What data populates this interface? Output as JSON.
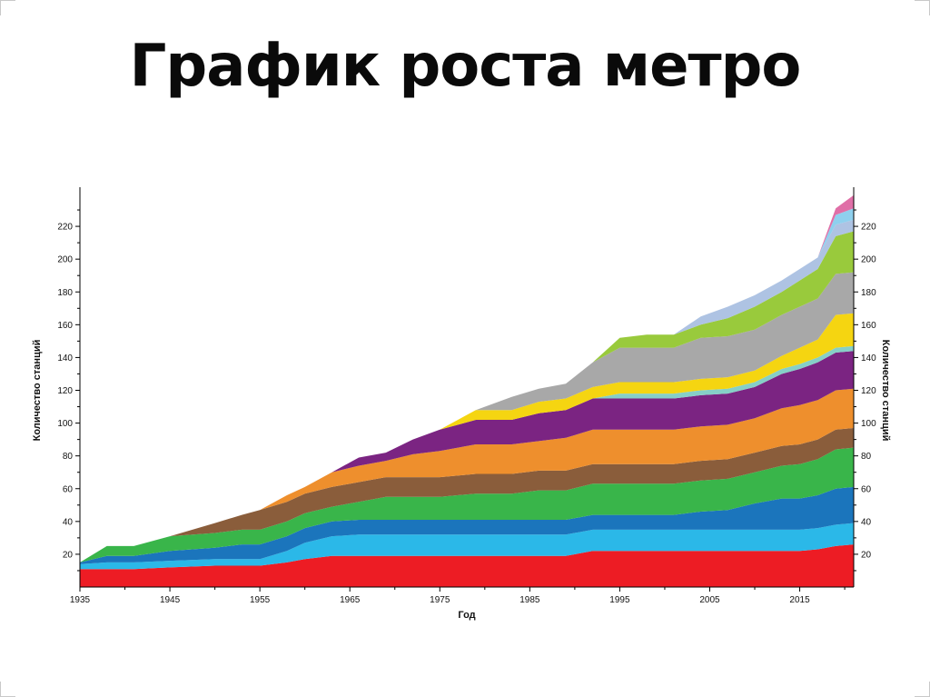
{
  "slide": {
    "title": "График роста метро"
  },
  "chart_data": {
    "type": "area",
    "stacked": true,
    "title": "",
    "xlabel": "Год",
    "ylabel_left": "Количество станций",
    "ylabel_right": "Количество станций",
    "xlim": [
      1935,
      2021
    ],
    "ylim": [
      0,
      240
    ],
    "x_ticks": [
      1935,
      1945,
      1955,
      1965,
      1975,
      1985,
      1995,
      2005,
      2015
    ],
    "y_ticks": [
      20,
      40,
      60,
      80,
      100,
      120,
      140,
      160,
      180,
      200,
      220
    ],
    "grid": false,
    "legend": "none",
    "x": [
      1935,
      1938,
      1941,
      1945,
      1950,
      1953,
      1955,
      1958,
      1960,
      1963,
      1966,
      1969,
      1972,
      1975,
      1979,
      1983,
      1986,
      1989,
      1992,
      1995,
      1998,
      2001,
      2004,
      2007,
      2010,
      2013,
      2015,
      2017,
      2019,
      2021
    ],
    "series": [
      {
        "name": "red",
        "color": "#ED1C24",
        "values": [
          11,
          11,
          11,
          12,
          13,
          13,
          13,
          15,
          17,
          19,
          19,
          19,
          19,
          19,
          19,
          19,
          19,
          19,
          22,
          22,
          22,
          22,
          22,
          22,
          22,
          22,
          22,
          23,
          25,
          26
        ]
      },
      {
        "name": "light-blue",
        "color": "#2BB8E8",
        "values": [
          3,
          4,
          4,
          4,
          4,
          4,
          4,
          7,
          10,
          12,
          13,
          13,
          13,
          13,
          13,
          13,
          13,
          13,
          13,
          13,
          13,
          13,
          13,
          13,
          13,
          13,
          13,
          13,
          13,
          13
        ]
      },
      {
        "name": "dark-blue",
        "color": "#1B75BC",
        "values": [
          1,
          4,
          4,
          6,
          7,
          9,
          9,
          9,
          9,
          9,
          9,
          9,
          9,
          9,
          9,
          9,
          9,
          9,
          9,
          9,
          9,
          9,
          11,
          12,
          16,
          19,
          19,
          20,
          22,
          22
        ]
      },
      {
        "name": "green",
        "color": "#39B54A",
        "values": [
          0,
          6,
          6,
          9,
          9,
          9,
          9,
          9,
          9,
          9,
          11,
          14,
          14,
          14,
          16,
          16,
          18,
          18,
          19,
          19,
          19,
          19,
          19,
          19,
          19,
          20,
          21,
          22,
          24,
          24
        ]
      },
      {
        "name": "brown",
        "color": "#8A5D3B",
        "values": [
          0,
          0,
          0,
          0,
          6,
          9,
          12,
          12,
          12,
          12,
          12,
          12,
          12,
          12,
          12,
          12,
          12,
          12,
          12,
          12,
          12,
          12,
          12,
          12,
          12,
          12,
          12,
          12,
          12,
          12
        ]
      },
      {
        "name": "orange",
        "color": "#EE8F2D",
        "values": [
          0,
          0,
          0,
          0,
          0,
          0,
          0,
          4,
          4,
          9,
          10,
          10,
          14,
          16,
          18,
          18,
          18,
          20,
          21,
          21,
          21,
          21,
          21,
          21,
          21,
          23,
          24,
          24,
          24,
          24
        ]
      },
      {
        "name": "purple",
        "color": "#7B2482",
        "values": [
          0,
          0,
          0,
          0,
          0,
          0,
          0,
          0,
          0,
          0,
          5,
          5,
          9,
          13,
          15,
          15,
          17,
          17,
          19,
          19,
          19,
          19,
          19,
          19,
          19,
          21,
          22,
          23,
          23,
          23
        ]
      },
      {
        "name": "teal",
        "color": "#86CFC7",
        "values": [
          0,
          0,
          0,
          0,
          0,
          0,
          0,
          0,
          0,
          0,
          0,
          0,
          0,
          0,
          0,
          0,
          0,
          0,
          0,
          3,
          3,
          3,
          3,
          3,
          3,
          3,
          3,
          3,
          3,
          3
        ]
      },
      {
        "name": "yellow",
        "color": "#F5D511",
        "values": [
          0,
          0,
          0,
          0,
          0,
          0,
          0,
          0,
          0,
          0,
          0,
          0,
          0,
          0,
          6,
          6,
          7,
          7,
          7,
          7,
          7,
          7,
          7,
          7,
          7,
          8,
          10,
          11,
          20,
          20
        ]
      },
      {
        "name": "gray",
        "color": "#A8A8A8",
        "values": [
          0,
          0,
          0,
          0,
          0,
          0,
          0,
          0,
          0,
          0,
          0,
          0,
          0,
          0,
          0,
          8,
          8,
          9,
          15,
          21,
          21,
          21,
          25,
          25,
          25,
          25,
          25,
          25,
          25,
          25
        ]
      },
      {
        "name": "lime",
        "color": "#99CA3C",
        "values": [
          0,
          0,
          0,
          0,
          0,
          0,
          0,
          0,
          0,
          0,
          0,
          0,
          0,
          0,
          0,
          0,
          0,
          0,
          0,
          6,
          8,
          8,
          8,
          11,
          14,
          14,
          16,
          18,
          23,
          25
        ]
      },
      {
        "name": "lavender",
        "color": "#AEC3E3",
        "values": [
          0,
          0,
          0,
          0,
          0,
          0,
          0,
          0,
          0,
          0,
          0,
          0,
          0,
          0,
          0,
          0,
          0,
          0,
          0,
          0,
          0,
          0,
          5,
          7,
          7,
          7,
          7,
          7,
          7,
          7
        ]
      },
      {
        "name": "sky-blue",
        "color": "#8FD0EE",
        "values": [
          0,
          0,
          0,
          0,
          0,
          0,
          0,
          0,
          0,
          0,
          0,
          0,
          0,
          0,
          0,
          0,
          0,
          0,
          0,
          0,
          0,
          0,
          0,
          0,
          0,
          0,
          0,
          0,
          6,
          7
        ]
      },
      {
        "name": "pink",
        "color": "#E06FA7",
        "values": [
          0,
          0,
          0,
          0,
          0,
          0,
          0,
          0,
          0,
          0,
          0,
          0,
          0,
          0,
          0,
          0,
          0,
          0,
          0,
          0,
          0,
          0,
          0,
          0,
          0,
          0,
          0,
          0,
          4,
          8
        ]
      }
    ]
  }
}
